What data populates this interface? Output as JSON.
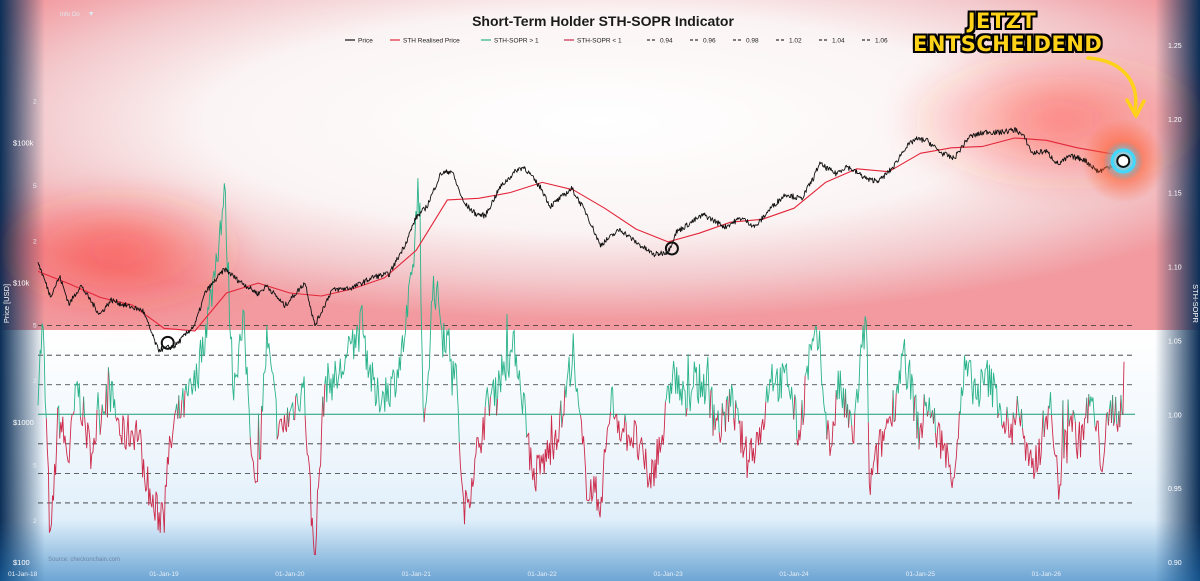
{
  "toolbar": {
    "info_label": "Info On",
    "caret": "▼"
  },
  "annotation": {
    "callout_line1": "JETZT",
    "callout_line2": "ENTSCHEIDEND"
  },
  "colors": {
    "price": "#111111",
    "realised_price": "#e3263a",
    "sopr_above": "#2bb38a",
    "sopr_below": "#cc2a4a",
    "callout_text": "#ffd21a",
    "marker_glow": "#3fd9ff",
    "marker_highlight": "#ff4a1a"
  },
  "chart_data": {
    "type": "line",
    "title": "Short-Term Holder STH-SOPR Indicator",
    "source": "Source: checkonchain.com",
    "left_axis": {
      "label": "Price [USD]",
      "scale": "log",
      "range": [
        100,
        500000
      ],
      "major_ticks": [
        {
          "value": 100,
          "label": "$100"
        },
        {
          "value": 1000,
          "label": "$1000"
        },
        {
          "value": 10000,
          "label": "$10k"
        },
        {
          "value": 100000,
          "label": "$100k"
        }
      ],
      "minor_ticks": [
        {
          "value": 200,
          "label": "2"
        },
        {
          "value": 500,
          "label": "5"
        },
        {
          "value": 2000,
          "label": "2"
        },
        {
          "value": 5000,
          "label": "5"
        },
        {
          "value": 20000,
          "label": "2"
        },
        {
          "value": 50000,
          "label": "5"
        },
        {
          "value": 200000,
          "label": "2"
        }
      ]
    },
    "right_axis": {
      "label": "STH-SOPR",
      "range": [
        0.9,
        1.25
      ],
      "ticks": [
        "0.90",
        "0.95",
        "1.00",
        "1.05",
        "1.10",
        "1.15",
        "1.20",
        "1.25"
      ]
    },
    "x_axis": {
      "range": [
        "2018-01-01",
        "2026-09-15"
      ],
      "ticks": [
        "01-Jan-18",
        "01-Jan-19",
        "01-Jan-20",
        "01-Jan-21",
        "01-Jan-22",
        "01-Jan-23",
        "01-Jan-24",
        "01-Jan-25",
        "01-Jan-26"
      ]
    },
    "legend": {
      "placement": "top-center",
      "entries": [
        "Price",
        "STH Realised Price",
        "STH-SOPR > 1",
        "STH-SOPR < 1",
        "0.94",
        "0.96",
        "0.98",
        "1.02",
        "1.04",
        "1.06"
      ]
    },
    "reference_levels": [
      0.94,
      0.96,
      0.98,
      1.0,
      1.02,
      1.04,
      1.06
    ],
    "series": [
      {
        "name": "Price",
        "x": [
          "2018-01-01",
          "2018-02-06",
          "2018-03-05",
          "2018-04-01",
          "2018-05-05",
          "2018-06-29",
          "2018-08-01",
          "2018-09-01",
          "2018-11-01",
          "2018-12-15",
          "2019-02-01",
          "2019-04-01",
          "2019-05-01",
          "2019-06-26",
          "2019-08-01",
          "2019-10-01",
          "2019-10-26",
          "2019-12-17",
          "2020-02-14",
          "2020-03-13",
          "2020-05-01",
          "2020-07-01",
          "2020-09-01",
          "2020-10-15",
          "2020-12-01",
          "2020-12-31",
          "2021-02-01",
          "2021-03-13",
          "2021-04-14",
          "2021-05-19",
          "2021-06-22",
          "2021-07-20",
          "2021-09-01",
          "2021-10-20",
          "2021-11-10",
          "2022-01-01",
          "2022-01-24",
          "2022-03-28",
          "2022-05-10",
          "2022-06-18",
          "2022-08-15",
          "2022-10-01",
          "2022-11-21",
          "2023-01-01",
          "2023-01-25",
          "2023-03-20",
          "2023-04-14",
          "2023-06-15",
          "2023-08-01",
          "2023-09-11",
          "2023-10-25",
          "2023-12-08",
          "2024-01-22",
          "2024-02-28",
          "2024-03-14",
          "2024-05-01",
          "2024-06-01",
          "2024-08-05",
          "2024-09-06",
          "2024-10-15",
          "2024-11-15",
          "2024-12-17",
          "2025-01-20",
          "2025-03-01",
          "2025-04-08",
          "2025-05-22",
          "2025-07-14",
          "2025-08-14",
          "2025-10-06",
          "2025-10-31",
          "2025-11-21",
          "2025-12-31",
          "2026-02-05",
          "2026-03-10",
          "2026-04-20",
          "2026-06-01",
          "2026-07-10",
          "2026-08-15"
        ],
        "y": [
          14000,
          8000,
          11000,
          7000,
          9500,
          5900,
          7500,
          7000,
          6300,
          3300,
          3500,
          5000,
          8500,
          12500,
          10500,
          8300,
          9500,
          6800,
          10000,
          4900,
          8800,
          9200,
          11000,
          11500,
          19000,
          29000,
          35000,
          60000,
          63000,
          37000,
          31000,
          30000,
          48000,
          64000,
          67000,
          46000,
          35000,
          47000,
          31000,
          18500,
          24000,
          19300,
          15800,
          16600,
          23000,
          28000,
          30500,
          25000,
          29000,
          25000,
          34000,
          43000,
          39500,
          57000,
          71000,
          60000,
          68000,
          54000,
          54000,
          67000,
          90000,
          106000,
          104000,
          85000,
          77000,
          110000,
          120000,
          118000,
          124000,
          108000,
          84000,
          87000,
          70000,
          80000,
          76000,
          62000,
          69000,
          66000
        ]
      },
      {
        "name": "STH Realised Price",
        "x": [
          "2018-01-01",
          "2018-04-01",
          "2018-07-01",
          "2018-10-01",
          "2019-01-01",
          "2019-04-01",
          "2019-07-01",
          "2019-10-01",
          "2020-01-01",
          "2020-04-01",
          "2020-07-01",
          "2020-10-01",
          "2021-01-01",
          "2021-04-01",
          "2021-07-01",
          "2021-10-01",
          "2022-01-01",
          "2022-04-01",
          "2022-07-01",
          "2022-10-01",
          "2023-01-01",
          "2023-04-01",
          "2023-07-01",
          "2023-10-01",
          "2024-01-01",
          "2024-04-01",
          "2024-07-01",
          "2024-10-01",
          "2025-01-01",
          "2025-04-01",
          "2025-07-01",
          "2025-10-01",
          "2026-01-01",
          "2026-04-01",
          "2026-07-01",
          "2026-08-15"
        ],
        "y": [
          12000,
          9800,
          7800,
          6900,
          4700,
          4500,
          8400,
          9900,
          8400,
          8000,
          9000,
          10800,
          17000,
          39000,
          40000,
          44000,
          52000,
          46000,
          34000,
          24000,
          19500,
          22500,
          27000,
          28300,
          34000,
          52000,
          65000,
          62000,
          84000,
          92000,
          94000,
          108000,
          104000,
          92000,
          84000,
          82000
        ]
      },
      {
        "name": "STH-SOPR",
        "x": [
          "2018-01-01",
          "2018-01-15",
          "2018-02-06",
          "2018-03-01",
          "2018-03-31",
          "2018-04-25",
          "2018-06-01",
          "2018-07-24",
          "2018-09-01",
          "2018-10-15",
          "2018-11-25",
          "2018-12-20",
          "2019-02-01",
          "2019-04-02",
          "2019-05-15",
          "2019-06-26",
          "2019-07-20",
          "2019-08-20",
          "2019-09-24",
          "2019-10-26",
          "2019-12-01",
          "2020-02-10",
          "2020-03-12",
          "2020-04-10",
          "2020-05-20",
          "2020-07-27",
          "2020-09-05",
          "2020-10-25",
          "2020-11-20",
          "2020-12-20",
          "2021-01-08",
          "2021-01-22",
          "2021-02-20",
          "2021-03-20",
          "2021-04-25",
          "2021-05-19",
          "2021-06-22",
          "2021-07-30",
          "2021-09-07",
          "2021-10-15",
          "2021-11-20",
          "2021-12-04",
          "2022-01-22",
          "2022-03-01",
          "2022-03-28",
          "2022-05-10",
          "2022-06-18",
          "2022-07-20",
          "2022-08-20",
          "2022-09-25",
          "2022-11-09",
          "2022-12-20",
          "2023-01-14",
          "2023-02-20",
          "2023-03-13",
          "2023-04-20",
          "2023-06-01",
          "2023-07-01",
          "2023-08-17",
          "2023-09-30",
          "2023-10-25",
          "2023-11-20",
          "2023-12-15",
          "2024-01-15",
          "2024-02-15",
          "2024-03-12",
          "2024-04-13",
          "2024-05-10",
          "2024-06-20",
          "2024-07-29",
          "2024-08-05",
          "2024-09-15",
          "2024-10-20",
          "2024-11-11",
          "2024-12-05",
          "2024-12-30",
          "2025-01-20",
          "2025-02-15",
          "2025-03-10",
          "2025-04-07",
          "2025-05-10",
          "2025-06-15",
          "2025-07-14",
          "2025-08-15",
          "2025-09-20",
          "2025-10-10",
          "2025-11-05",
          "2025-11-21",
          "2025-12-15",
          "2026-01-10",
          "2026-02-05",
          "2026-03-05",
          "2026-04-05",
          "2026-05-10",
          "2026-06-10",
          "2026-07-10",
          "2026-08-01",
          "2026-08-10",
          "2026-08-15"
        ],
        "y": [
          1.02,
          1.06,
          0.91,
          1.0,
          0.97,
          1.02,
          0.975,
          1.02,
          0.985,
          0.99,
          0.94,
          0.93,
          0.995,
          1.02,
          1.075,
          1.15,
          1.02,
          1.06,
          0.94,
          1.05,
          0.985,
          1.02,
          0.9,
          1.02,
          1.025,
          1.06,
          1.01,
          1.02,
          1.04,
          1.09,
          1.16,
          0.98,
          1.09,
          1.06,
          1.03,
          0.93,
          0.97,
          1.01,
          1.03,
          1.045,
          0.99,
          0.955,
          0.975,
          1.0,
          1.04,
          0.955,
          0.94,
          1.01,
          0.99,
          0.985,
          0.955,
          0.99,
          1.03,
          1.005,
          1.02,
          1.02,
          0.99,
          1.01,
          0.97,
          0.99,
          1.03,
          1.02,
          1.025,
          0.985,
          1.04,
          1.05,
          0.975,
          1.02,
          0.985,
          1.07,
          0.95,
          0.985,
          1.01,
          1.04,
          1.02,
          0.985,
          1.01,
          0.99,
          0.975,
          0.96,
          1.03,
          1.015,
          1.025,
          1.01,
          0.985,
          1.01,
          0.97,
          0.96,
          0.98,
          1.01,
          0.95,
          1.005,
          0.98,
          1.01,
          0.97,
          1.005,
          1.0,
          1.01,
          1.025
        ]
      }
    ],
    "markers": [
      {
        "x": "2019-01-12",
        "y": 3700,
        "type": "circle"
      },
      {
        "x": "2023-01-12",
        "y": 17500,
        "type": "circle"
      },
      {
        "x": "2026-08-12",
        "y": 74000,
        "type": "highlight"
      }
    ]
  }
}
